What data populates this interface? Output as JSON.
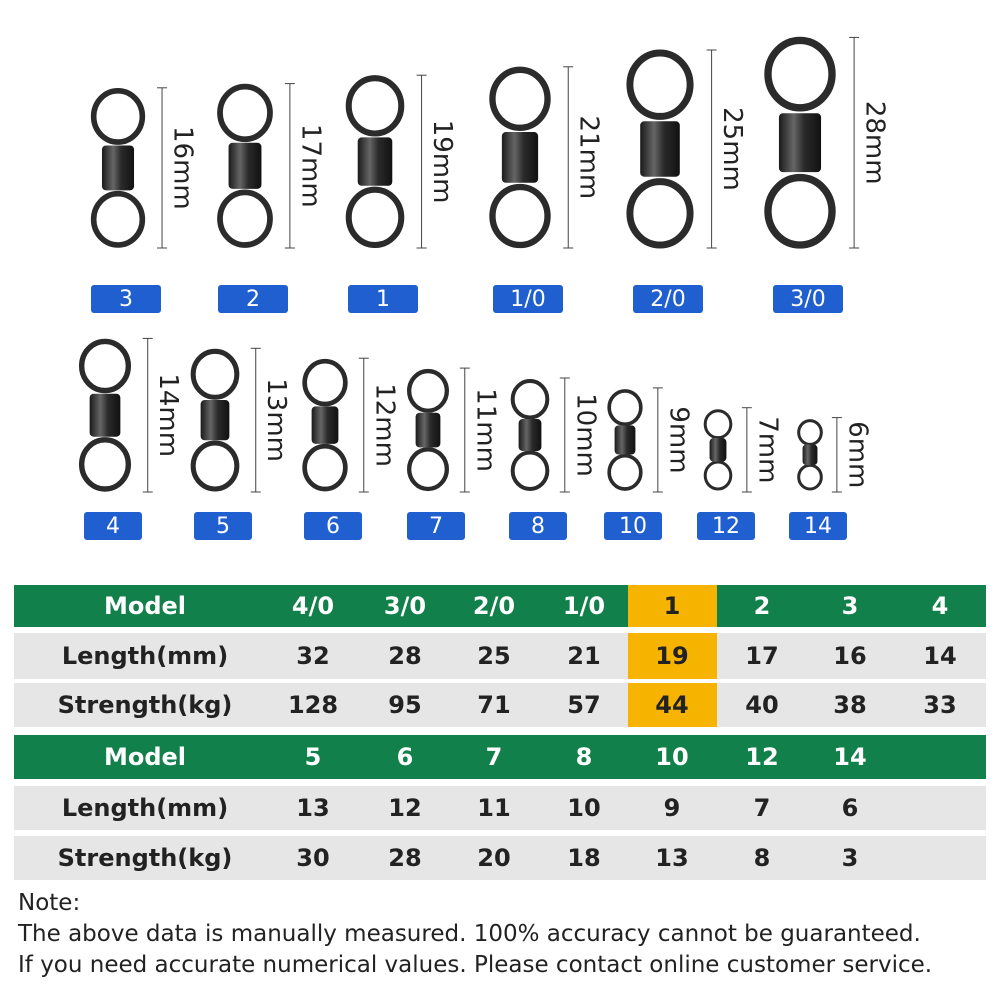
{
  "swivels_top": [
    {
      "size": "3",
      "length": "16mm"
    },
    {
      "size": "2",
      "length": "17mm"
    },
    {
      "size": "1",
      "length": "19mm"
    },
    {
      "size": "1/0",
      "length": "21mm"
    },
    {
      "size": "2/0",
      "length": "25mm"
    },
    {
      "size": "3/0",
      "length": "28mm"
    }
  ],
  "swivels_bottom": [
    {
      "size": "4",
      "length": "14mm"
    },
    {
      "size": "5",
      "length": "13mm"
    },
    {
      "size": "6",
      "length": "12mm"
    },
    {
      "size": "7",
      "length": "11mm"
    },
    {
      "size": "8",
      "length": "10mm"
    },
    {
      "size": "10",
      "length": "9mm"
    },
    {
      "size": "12",
      "length": "7mm"
    },
    {
      "size": "14",
      "length": "6mm"
    }
  ],
  "table1": {
    "rows": [
      [
        "Model",
        "4/0",
        "3/0",
        "2/0",
        "1/0",
        "1",
        "2",
        "3",
        "4"
      ],
      [
        "Length(mm)",
        32,
        28,
        25,
        21,
        19,
        17,
        16,
        14
      ],
      [
        "Strength(kg)",
        128,
        95,
        71,
        57,
        44,
        40,
        38,
        33
      ]
    ]
  },
  "table2": {
    "rows": [
      [
        "Model",
        "5",
        "6",
        "7",
        "8",
        "10",
        "12",
        "14"
      ],
      [
        "Length(mm)",
        13,
        12,
        11,
        10,
        9,
        7,
        6
      ],
      [
        "Strength(kg)",
        30,
        28,
        20,
        18,
        13,
        8,
        3
      ]
    ]
  },
  "note": {
    "title": "Note:",
    "lines": [
      "The above data is manually measured. 100% accuracy cannot be guaranteed.",
      "If you need accurate numerical values. Please contact online customer service."
    ]
  }
}
